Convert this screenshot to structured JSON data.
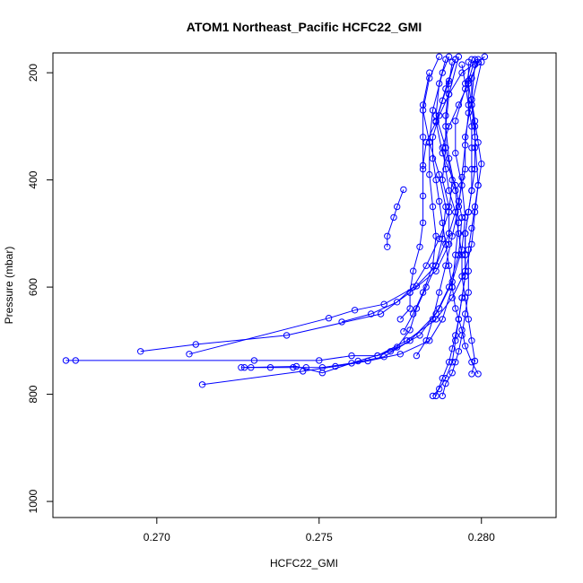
{
  "chart_data": {
    "type": "line",
    "title": "ATOM1 Northeast_Pacific HCFC22_GMI",
    "xlabel": "HCFC22_GMI",
    "ylabel": "Pressure (mbar)",
    "xlim": [
      0.2668,
      0.2823
    ],
    "ylim": [
      1030,
      163
    ],
    "y_reversed": true,
    "xticks": [
      0.27,
      0.275,
      0.28
    ],
    "xtick_labels": [
      "0.270",
      "0.275",
      "0.280"
    ],
    "yticks": [
      200,
      400,
      600,
      800,
      1000
    ],
    "ytick_labels": [
      "200",
      "400",
      "600",
      "800",
      "1000"
    ],
    "grid": false,
    "legend": "none",
    "series_color": "#0000FF",
    "series": [
      {
        "points": [
          [
            0.2672,
            737
          ],
          [
            0.2675,
            737
          ],
          [
            0.273,
            737
          ],
          [
            0.275,
            737
          ],
          [
            0.276,
            728
          ],
          [
            0.2768,
            728
          ],
          [
            0.2777,
            700
          ],
          [
            0.2786,
            660
          ],
          [
            0.2791,
            620
          ],
          [
            0.2795,
            570
          ],
          [
            0.2797,
            520
          ],
          [
            0.2798,
            460
          ],
          [
            0.2799,
            410
          ],
          [
            0.2798,
            320
          ],
          [
            0.2797,
            260
          ],
          [
            0.28,
            180
          ]
        ]
      },
      {
        "points": [
          [
            0.2695,
            720
          ],
          [
            0.2712,
            707
          ],
          [
            0.274,
            690
          ],
          [
            0.2769,
            650
          ],
          [
            0.2778,
            610
          ],
          [
            0.2786,
            570
          ],
          [
            0.279,
            520
          ],
          [
            0.279,
            450
          ],
          [
            0.2788,
            400
          ],
          [
            0.2789,
            340
          ],
          [
            0.2789,
            280
          ],
          [
            0.279,
            220
          ],
          [
            0.2791,
            180
          ]
        ]
      },
      {
        "points": [
          [
            0.271,
            725
          ],
          [
            0.2753,
            658
          ],
          [
            0.2761,
            643
          ],
          [
            0.277,
            632
          ],
          [
            0.278,
            598
          ],
          [
            0.2786,
            560
          ],
          [
            0.279,
            500
          ],
          [
            0.2793,
            440
          ],
          [
            0.2795,
            380
          ],
          [
            0.2795,
            320
          ],
          [
            0.2797,
            250
          ],
          [
            0.2798,
            185
          ]
        ]
      },
      {
        "points": [
          [
            0.2714,
            782
          ],
          [
            0.2745,
            757
          ],
          [
            0.2755,
            748
          ],
          [
            0.2765,
            738
          ],
          [
            0.2775,
            725
          ],
          [
            0.2784,
            700
          ],
          [
            0.2788,
            660
          ],
          [
            0.2791,
            600
          ],
          [
            0.2792,
            540
          ],
          [
            0.2793,
            480
          ],
          [
            0.2792,
            420
          ],
          [
            0.279,
            360
          ],
          [
            0.2789,
            300
          ],
          [
            0.279,
            240
          ],
          [
            0.2793,
            170
          ]
        ]
      },
      {
        "points": [
          [
            0.2726,
            750
          ],
          [
            0.2729,
            750
          ],
          [
            0.2735,
            750
          ],
          [
            0.2742,
            750
          ],
          [
            0.2746,
            750
          ],
          [
            0.2751,
            750
          ],
          [
            0.276,
            742
          ],
          [
            0.277,
            730
          ],
          [
            0.2778,
            700
          ],
          [
            0.2786,
            650
          ],
          [
            0.279,
            600
          ],
          [
            0.2793,
            540
          ],
          [
            0.2794,
            470
          ],
          [
            0.2792,
            410
          ],
          [
            0.2788,
            350
          ],
          [
            0.2786,
            290
          ],
          [
            0.2789,
            230
          ],
          [
            0.2792,
            175
          ]
        ]
      },
      {
        "points": [
          [
            0.2727,
            750
          ],
          [
            0.2743,
            748
          ],
          [
            0.2751,
            760
          ],
          [
            0.2762,
            738
          ],
          [
            0.2772,
            720
          ],
          [
            0.2781,
            690
          ],
          [
            0.2787,
            640
          ],
          [
            0.2791,
            590
          ],
          [
            0.2794,
            530
          ],
          [
            0.2795,
            470
          ],
          [
            0.2794,
            410
          ],
          [
            0.2792,
            350
          ],
          [
            0.2792,
            290
          ],
          [
            0.2795,
            230
          ],
          [
            0.2797,
            175
          ]
        ]
      },
      {
        "points": [
          [
            0.2757,
            665
          ],
          [
            0.2766,
            650
          ],
          [
            0.2774,
            628
          ],
          [
            0.2779,
            600
          ],
          [
            0.2783,
            560
          ],
          [
            0.2787,
            510
          ],
          [
            0.279,
            460
          ],
          [
            0.2791,
            400
          ],
          [
            0.2789,
            340
          ],
          [
            0.2786,
            280
          ],
          [
            0.2787,
            220
          ],
          [
            0.2789,
            175
          ]
        ]
      },
      {
        "points": [
          [
            0.2768,
            728
          ],
          [
            0.2774,
            712
          ],
          [
            0.2778,
            680
          ],
          [
            0.278,
            640
          ],
          [
            0.2783,
            600
          ],
          [
            0.2786,
            560
          ],
          [
            0.2788,
            510
          ],
          [
            0.2789,
            450
          ],
          [
            0.2787,
            390
          ],
          [
            0.2784,
            330
          ],
          [
            0.2782,
            270
          ],
          [
            0.2784,
            210
          ],
          [
            0.2787,
            170
          ]
        ]
      },
      {
        "points": [
          [
            0.2771,
            525
          ],
          [
            0.2771,
            505
          ],
          [
            0.2773,
            470
          ],
          [
            0.2774,
            450
          ],
          [
            0.2776,
            418
          ]
        ]
      },
      {
        "points": [
          [
            0.2775,
            660
          ],
          [
            0.2778,
            640
          ],
          [
            0.2778,
            610
          ],
          [
            0.2779,
            570
          ],
          [
            0.2781,
            525
          ],
          [
            0.2782,
            480
          ],
          [
            0.2782,
            430
          ],
          [
            0.2782,
            380
          ],
          [
            0.2782,
            320
          ],
          [
            0.2782,
            260
          ],
          [
            0.2784,
            200
          ]
        ]
      },
      {
        "points": [
          [
            0.2776,
            683
          ],
          [
            0.2779,
            650
          ],
          [
            0.2782,
            610
          ],
          [
            0.2785,
            560
          ],
          [
            0.2786,
            505
          ],
          [
            0.2785,
            450
          ],
          [
            0.2784,
            390
          ],
          [
            0.2784,
            330
          ],
          [
            0.2785,
            270
          ],
          [
            0.2788,
            200
          ],
          [
            0.279,
            170
          ]
        ]
      },
      {
        "points": [
          [
            0.278,
            728
          ],
          [
            0.2783,
            700
          ],
          [
            0.2785,
            660
          ],
          [
            0.2787,
            610
          ],
          [
            0.2789,
            560
          ],
          [
            0.2791,
            505
          ],
          [
            0.2793,
            450
          ],
          [
            0.2794,
            395
          ],
          [
            0.2795,
            335
          ],
          [
            0.2796,
            275
          ],
          [
            0.2796,
            215
          ],
          [
            0.2798,
            175
          ]
        ]
      },
      {
        "points": [
          [
            0.2782,
            373
          ],
          [
            0.2783,
            330
          ],
          [
            0.2786,
            292
          ],
          [
            0.2788,
            252
          ],
          [
            0.279,
            215
          ],
          [
            0.2792,
            175
          ]
        ]
      },
      {
        "points": [
          [
            0.2785,
            803
          ],
          [
            0.2787,
            790
          ],
          [
            0.2789,
            770
          ],
          [
            0.2791,
            740
          ],
          [
            0.2792,
            700
          ],
          [
            0.2793,
            660
          ],
          [
            0.2794,
            620
          ],
          [
            0.2795,
            580
          ],
          [
            0.2795,
            540
          ],
          [
            0.2795,
            500
          ],
          [
            0.2796,
            460
          ],
          [
            0.2797,
            420
          ],
          [
            0.2798,
            380
          ],
          [
            0.2798,
            340
          ],
          [
            0.2798,
            300
          ],
          [
            0.2797,
            260
          ],
          [
            0.2796,
            220
          ],
          [
            0.2796,
            180
          ]
        ]
      },
      {
        "points": [
          [
            0.2786,
            803
          ],
          [
            0.2788,
            770
          ],
          [
            0.279,
            740
          ],
          [
            0.2791,
            715
          ],
          [
            0.2792,
            690
          ],
          [
            0.2793,
            660
          ],
          [
            0.2794,
            620
          ],
          [
            0.2795,
            580
          ],
          [
            0.2795,
            540
          ],
          [
            0.2795,
            500
          ],
          [
            0.2796,
            460
          ],
          [
            0.2797,
            420
          ],
          [
            0.2797,
            380
          ],
          [
            0.2797,
            340
          ],
          [
            0.2797,
            300
          ],
          [
            0.2796,
            260
          ],
          [
            0.2795,
            220
          ],
          [
            0.2794,
            185
          ]
        ]
      },
      {
        "points": [
          [
            0.2788,
            803
          ],
          [
            0.2789,
            780
          ],
          [
            0.2791,
            760
          ],
          [
            0.2792,
            740
          ],
          [
            0.2793,
            720
          ],
          [
            0.2794,
            690
          ],
          [
            0.2795,
            650
          ],
          [
            0.2796,
            610
          ],
          [
            0.2796,
            570
          ],
          [
            0.2796,
            530
          ],
          [
            0.2797,
            490
          ],
          [
            0.2798,
            450
          ],
          [
            0.2799,
            410
          ],
          [
            0.28,
            370
          ],
          [
            0.2799,
            330
          ],
          [
            0.2798,
            290
          ],
          [
            0.2797,
            250
          ],
          [
            0.2797,
            210
          ],
          [
            0.2799,
            175
          ]
        ]
      },
      {
        "points": [
          [
            0.2797,
            762
          ],
          [
            0.2798,
            738
          ],
          [
            0.2797,
            700
          ],
          [
            0.2796,
            660
          ],
          [
            0.2795,
            620
          ],
          [
            0.2794,
            580
          ],
          [
            0.2794,
            540
          ],
          [
            0.2793,
            500
          ],
          [
            0.2792,
            460
          ],
          [
            0.279,
            420
          ],
          [
            0.2789,
            380
          ],
          [
            0.2788,
            340
          ],
          [
            0.279,
            300
          ],
          [
            0.2793,
            260
          ],
          [
            0.2796,
            220
          ],
          [
            0.2799,
            180
          ]
        ]
      },
      {
        "points": [
          [
            0.2799,
            762
          ],
          [
            0.2797,
            740
          ],
          [
            0.2795,
            710
          ],
          [
            0.2794,
            680
          ],
          [
            0.2792,
            640
          ],
          [
            0.2791,
            600
          ],
          [
            0.279,
            560
          ],
          [
            0.2789,
            520
          ],
          [
            0.2788,
            480
          ],
          [
            0.2787,
            440
          ],
          [
            0.2786,
            400
          ],
          [
            0.2785,
            360
          ],
          [
            0.2785,
            320
          ],
          [
            0.2787,
            280
          ],
          [
            0.279,
            240
          ],
          [
            0.2794,
            200
          ],
          [
            0.2801,
            170
          ]
        ]
      }
    ]
  }
}
